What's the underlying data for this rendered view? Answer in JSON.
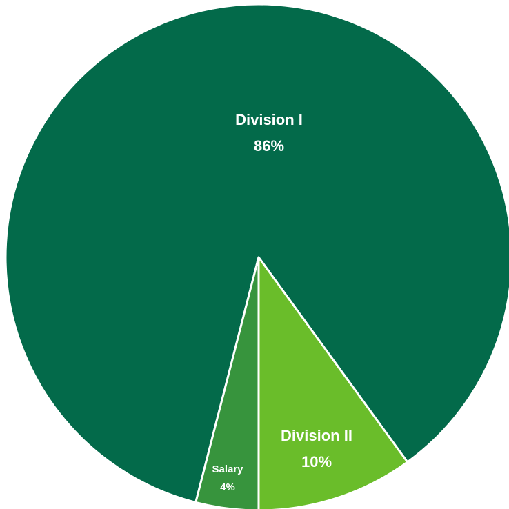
{
  "chart_data": {
    "type": "pie",
    "slices": [
      {
        "label": "Division I",
        "value": 86,
        "value_label": "86%",
        "color": "#036A4A"
      },
      {
        "label": "Division II",
        "value": 10,
        "value_label": "10%",
        "color": "#6ABD2A"
      },
      {
        "label": "Salary",
        "value": 4,
        "value_label": "4%",
        "color": "#37943D"
      }
    ],
    "slice_border_color": "#FFFFFF",
    "legend": "none"
  }
}
